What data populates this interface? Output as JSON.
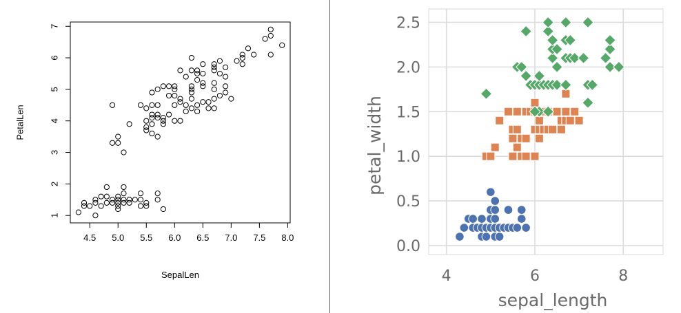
{
  "chart_data": [
    {
      "type": "scatter",
      "xlabel": "SepalLen",
      "ylabel": "PetalLen",
      "xlim": [
        4.3,
        7.9
      ],
      "ylim": [
        1.0,
        6.9
      ],
      "x_ticks": [
        "4.5",
        "5.0",
        "5.5",
        "6.0",
        "6.5",
        "7.0",
        "7.5",
        "8.0"
      ],
      "y_ticks": [
        "1",
        "2",
        "3",
        "4",
        "5",
        "6",
        "7"
      ],
      "grid": false,
      "marker": "open-circle",
      "color": "#000000",
      "points": [
        [
          4.3,
          1.1
        ],
        [
          4.4,
          1.3
        ],
        [
          4.4,
          1.4
        ],
        [
          4.5,
          1.3
        ],
        [
          4.6,
          1.0
        ],
        [
          4.6,
          1.4
        ],
        [
          4.6,
          1.5
        ],
        [
          4.7,
          1.3
        ],
        [
          4.7,
          1.6
        ],
        [
          4.8,
          1.4
        ],
        [
          4.8,
          1.6
        ],
        [
          4.8,
          1.9
        ],
        [
          4.9,
          1.4
        ],
        [
          4.9,
          1.5
        ],
        [
          5.0,
          1.2
        ],
        [
          5.0,
          1.3
        ],
        [
          5.0,
          1.4
        ],
        [
          5.0,
          1.5
        ],
        [
          5.0,
          1.6
        ],
        [
          5.1,
          1.4
        ],
        [
          5.1,
          1.5
        ],
        [
          5.1,
          1.7
        ],
        [
          5.1,
          1.9
        ],
        [
          5.2,
          1.4
        ],
        [
          5.2,
          1.5
        ],
        [
          5.3,
          1.5
        ],
        [
          5.4,
          1.3
        ],
        [
          5.4,
          1.5
        ],
        [
          5.4,
          1.7
        ],
        [
          5.5,
          1.3
        ],
        [
          5.5,
          1.4
        ],
        [
          5.7,
          1.5
        ],
        [
          5.7,
          1.7
        ],
        [
          5.8,
          1.2
        ],
        [
          4.9,
          3.3
        ],
        [
          4.9,
          4.5
        ],
        [
          5.0,
          3.3
        ],
        [
          5.0,
          3.5
        ],
        [
          5.1,
          3.0
        ],
        [
          5.2,
          3.9
        ],
        [
          5.4,
          4.5
        ],
        [
          5.5,
          3.7
        ],
        [
          5.5,
          3.8
        ],
        [
          5.5,
          4.0
        ],
        [
          5.5,
          4.4
        ],
        [
          5.6,
          3.6
        ],
        [
          5.6,
          3.9
        ],
        [
          5.6,
          4.1
        ],
        [
          5.6,
          4.2
        ],
        [
          5.6,
          4.5
        ],
        [
          5.7,
          3.5
        ],
        [
          5.7,
          4.1
        ],
        [
          5.7,
          4.2
        ],
        [
          5.7,
          4.5
        ],
        [
          5.8,
          3.9
        ],
        [
          5.8,
          4.0
        ],
        [
          5.8,
          4.1
        ],
        [
          5.9,
          4.2
        ],
        [
          5.9,
          4.8
        ],
        [
          6.0,
          4.0
        ],
        [
          6.0,
          4.5
        ],
        [
          6.0,
          5.1
        ],
        [
          6.1,
          4.0
        ],
        [
          6.1,
          4.6
        ],
        [
          6.1,
          4.7
        ],
        [
          6.2,
          4.3
        ],
        [
          6.2,
          4.5
        ],
        [
          6.3,
          4.4
        ],
        [
          6.3,
          4.7
        ],
        [
          6.3,
          4.9
        ],
        [
          6.4,
          4.3
        ],
        [
          6.4,
          4.5
        ],
        [
          6.5,
          4.6
        ],
        [
          6.6,
          4.4
        ],
        [
          6.6,
          4.6
        ],
        [
          6.7,
          4.4
        ],
        [
          6.7,
          4.7
        ],
        [
          6.7,
          5.0
        ],
        [
          6.8,
          4.8
        ],
        [
          6.9,
          4.9
        ],
        [
          7.0,
          4.7
        ],
        [
          5.6,
          4.9
        ],
        [
          5.7,
          5.0
        ],
        [
          5.8,
          5.1
        ],
        [
          5.9,
          5.1
        ],
        [
          6.0,
          4.8
        ],
        [
          6.0,
          5.0
        ],
        [
          6.1,
          5.6
        ],
        [
          6.2,
          5.4
        ],
        [
          6.3,
          5.0
        ],
        [
          6.3,
          5.1
        ],
        [
          6.3,
          5.6
        ],
        [
          6.3,
          6.0
        ],
        [
          6.4,
          5.3
        ],
        [
          6.4,
          5.5
        ],
        [
          6.4,
          5.6
        ],
        [
          6.5,
          5.1
        ],
        [
          6.5,
          5.2
        ],
        [
          6.5,
          5.5
        ],
        [
          6.5,
          5.8
        ],
        [
          6.7,
          5.2
        ],
        [
          6.7,
          5.6
        ],
        [
          6.7,
          5.7
        ],
        [
          6.7,
          5.8
        ],
        [
          6.8,
          5.5
        ],
        [
          6.8,
          5.9
        ],
        [
          6.9,
          5.1
        ],
        [
          6.9,
          5.4
        ],
        [
          6.9,
          5.7
        ],
        [
          7.1,
          5.9
        ],
        [
          7.2,
          5.8
        ],
        [
          7.2,
          6.0
        ],
        [
          7.2,
          6.1
        ],
        [
          7.3,
          6.3
        ],
        [
          7.4,
          6.1
        ],
        [
          7.6,
          6.6
        ],
        [
          7.7,
          6.1
        ],
        [
          7.7,
          6.7
        ],
        [
          7.7,
          6.9
        ],
        [
          7.9,
          6.4
        ]
      ]
    },
    {
      "type": "scatter",
      "xlabel": "sepal_length",
      "ylabel": "petal_width",
      "xlim": [
        3.6,
        8.9
      ],
      "ylim": [
        -0.1,
        2.65
      ],
      "x_ticks": [
        "4",
        "6",
        "8"
      ],
      "y_ticks": [
        "0.0",
        "0.5",
        "1.0",
        "1.5",
        "2.0",
        "2.5"
      ],
      "grid": true,
      "series": [
        {
          "marker": "circle",
          "color": "#4c72b0",
          "points": [
            [
              4.3,
              0.1
            ],
            [
              4.4,
              0.2
            ],
            [
              4.5,
              0.3
            ],
            [
              4.6,
              0.2
            ],
            [
              4.6,
              0.3
            ],
            [
              4.7,
              0.2
            ],
            [
              4.8,
              0.1
            ],
            [
              4.8,
              0.2
            ],
            [
              4.8,
              0.3
            ],
            [
              4.9,
              0.1
            ],
            [
              4.9,
              0.2
            ],
            [
              5.0,
              0.2
            ],
            [
              5.0,
              0.3
            ],
            [
              5.0,
              0.4
            ],
            [
              5.0,
              0.6
            ],
            [
              5.1,
              0.1
            ],
            [
              5.1,
              0.2
            ],
            [
              5.1,
              0.3
            ],
            [
              5.1,
              0.4
            ],
            [
              5.1,
              0.5
            ],
            [
              5.2,
              0.1
            ],
            [
              5.2,
              0.2
            ],
            [
              5.3,
              0.2
            ],
            [
              5.4,
              0.2
            ],
            [
              5.4,
              0.4
            ],
            [
              5.5,
              0.2
            ],
            [
              5.6,
              0.2
            ],
            [
              5.7,
              0.3
            ],
            [
              5.7,
              0.4
            ],
            [
              5.8,
              0.2
            ]
          ]
        },
        {
          "marker": "square",
          "color": "#dd8452",
          "points": [
            [
              4.9,
              1.0
            ],
            [
              5.0,
              1.0
            ],
            [
              5.1,
              1.1
            ],
            [
              5.5,
              1.0
            ],
            [
              5.5,
              1.2
            ],
            [
              5.5,
              1.3
            ],
            [
              5.6,
              1.1
            ],
            [
              5.6,
              1.3
            ],
            [
              5.6,
              1.5
            ],
            [
              5.7,
              1.0
            ],
            [
              5.7,
              1.2
            ],
            [
              5.8,
              1.0
            ],
            [
              5.8,
              1.2
            ],
            [
              5.8,
              1.5
            ],
            [
              5.9,
              1.5
            ],
            [
              6.0,
              1.0
            ],
            [
              6.0,
              1.3
            ],
            [
              6.0,
              1.5
            ],
            [
              6.0,
              1.6
            ],
            [
              6.1,
              1.2
            ],
            [
              6.1,
              1.3
            ],
            [
              6.2,
              1.3
            ],
            [
              6.2,
              1.5
            ],
            [
              6.3,
              1.3
            ],
            [
              6.3,
              1.5
            ],
            [
              6.4,
              1.3
            ],
            [
              6.5,
              1.5
            ],
            [
              6.6,
              1.3
            ],
            [
              6.6,
              1.4
            ],
            [
              6.7,
              1.4
            ],
            [
              6.7,
              1.5
            ],
            [
              6.8,
              1.4
            ],
            [
              6.9,
              1.5
            ],
            [
              7.0,
              1.4
            ],
            [
              5.4,
              1.5
            ],
            [
              5.2,
              1.4
            ],
            [
              6.1,
              1.4
            ],
            [
              6.7,
              1.7
            ]
          ]
        },
        {
          "marker": "diamond",
          "color": "#55a868",
          "points": [
            [
              4.9,
              1.7
            ],
            [
              5.6,
              2.0
            ],
            [
              5.7,
              2.0
            ],
            [
              5.8,
              1.9
            ],
            [
              5.8,
              2.4
            ],
            [
              5.9,
              1.8
            ],
            [
              6.0,
              1.8
            ],
            [
              6.1,
              1.8
            ],
            [
              6.1,
              1.9
            ],
            [
              6.2,
              1.8
            ],
            [
              6.3,
              1.8
            ],
            [
              6.3,
              2.4
            ],
            [
              6.3,
              2.5
            ],
            [
              6.4,
              1.8
            ],
            [
              6.4,
              2.1
            ],
            [
              6.4,
              2.2
            ],
            [
              6.4,
              2.3
            ],
            [
              6.5,
              1.8
            ],
            [
              6.5,
              2.0
            ],
            [
              6.5,
              2.2
            ],
            [
              6.7,
              1.8
            ],
            [
              6.7,
              2.1
            ],
            [
              6.7,
              2.3
            ],
            [
              6.7,
              2.5
            ],
            [
              6.8,
              2.1
            ],
            [
              6.8,
              2.3
            ],
            [
              6.9,
              2.1
            ],
            [
              7.1,
              2.1
            ],
            [
              7.2,
              1.6
            ],
            [
              7.2,
              1.8
            ],
            [
              7.2,
              2.5
            ],
            [
              7.3,
              1.8
            ],
            [
              7.6,
              2.1
            ],
            [
              7.7,
              2.0
            ],
            [
              7.7,
              2.2
            ],
            [
              7.7,
              2.3
            ],
            [
              7.9,
              2.0
            ],
            [
              6.1,
              1.5
            ],
            [
              6.3,
              1.5
            ],
            [
              6.0,
              1.5
            ]
          ]
        }
      ]
    }
  ]
}
